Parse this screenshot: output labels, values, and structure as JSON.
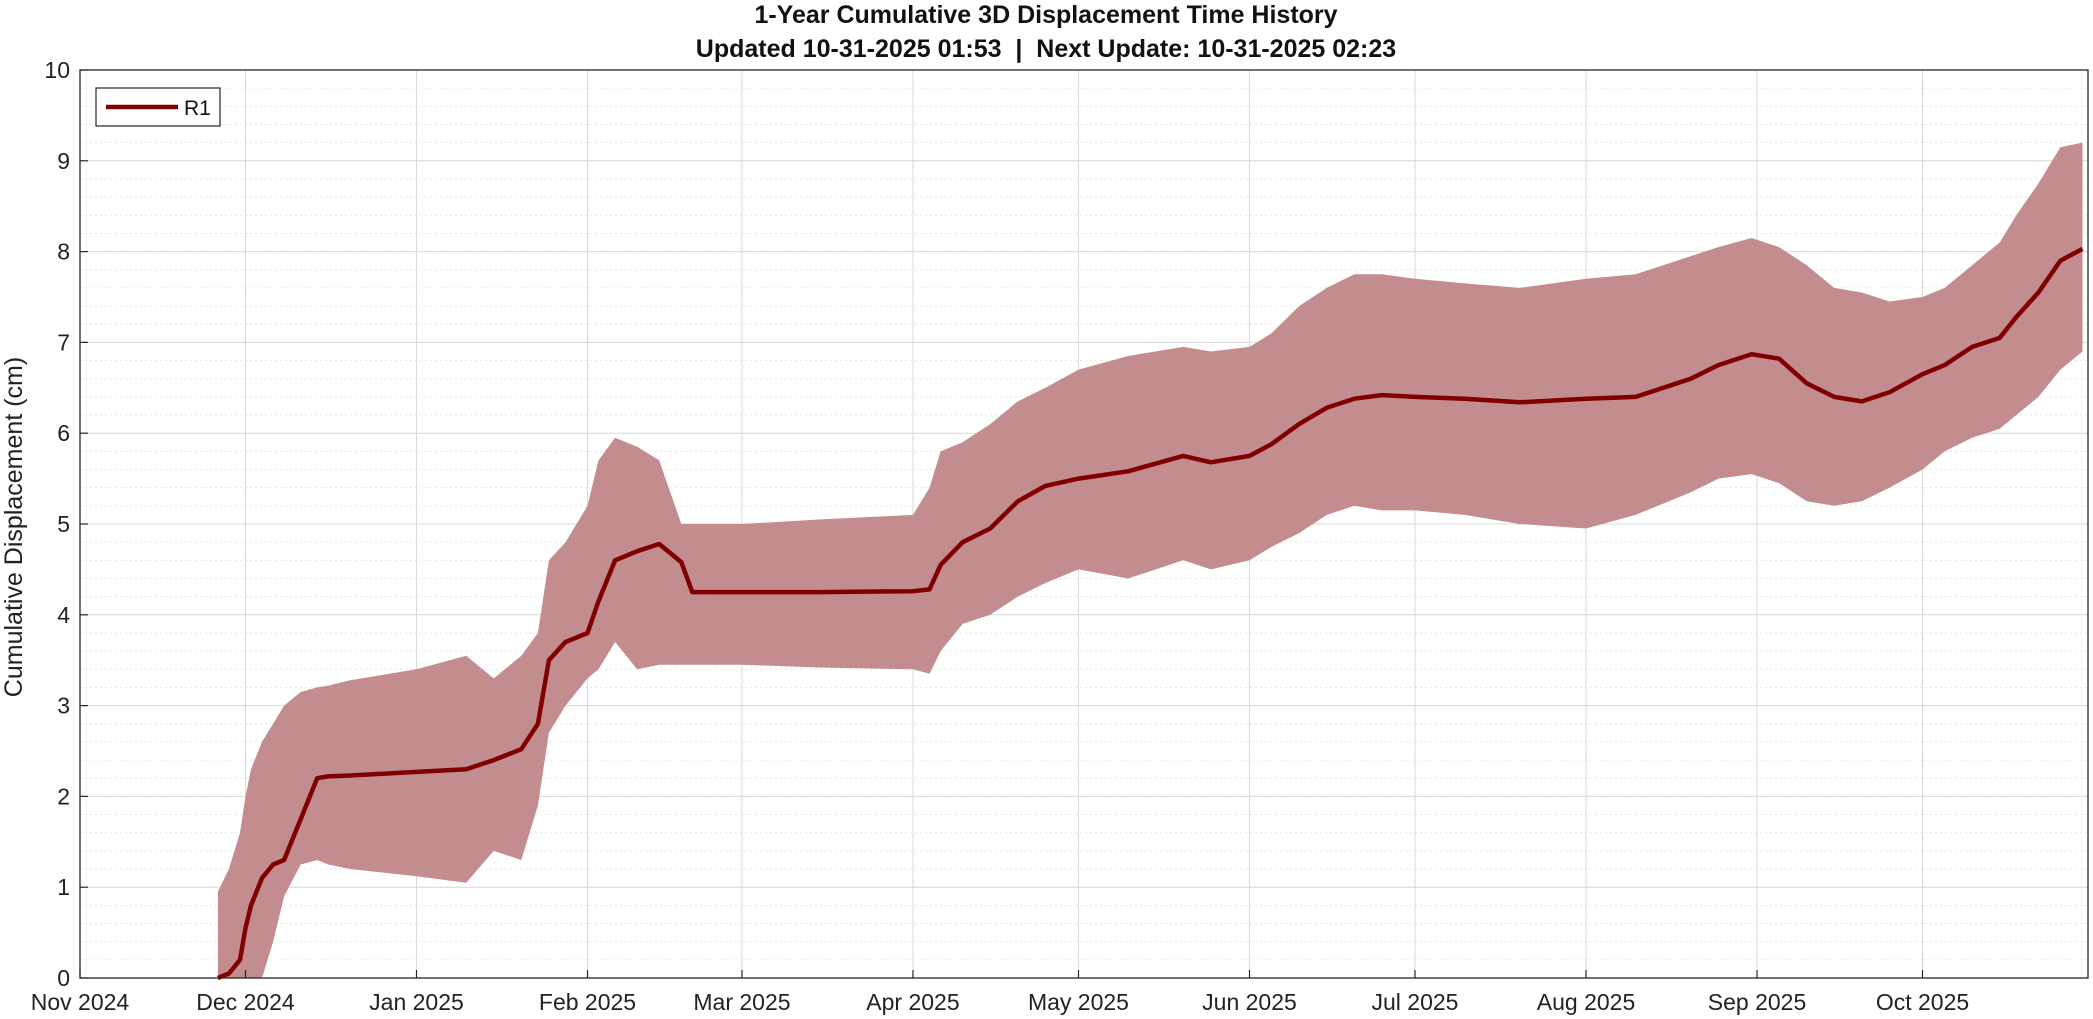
{
  "chart_data": {
    "type": "area",
    "title": "1-Year Cumulative 3D Displacement Time History",
    "subtitle": "Updated 10-31-2025 01:53  |  Next Update: 10-31-2025 02:23",
    "xlabel": "",
    "ylabel": "Cumulative Displacement (cm)",
    "xlim": [
      "2024-11-01",
      "2025-10-31"
    ],
    "ylim": [
      0,
      10
    ],
    "x_ticks": [
      "Nov 2024",
      "Dec 2024",
      "Jan 2025",
      "Feb 2025",
      "Mar 2025",
      "Apr 2025",
      "May 2025",
      "Jun 2025",
      "Jul 2025",
      "Aug 2025",
      "Sep 2025",
      "Oct 2025"
    ],
    "y_ticks": [
      "0",
      "1",
      "2",
      "3",
      "4",
      "5",
      "6",
      "7",
      "8",
      "9",
      "10"
    ],
    "grid": true,
    "minor_grid": true,
    "legend": {
      "position": "top-left",
      "entries": [
        "R1"
      ]
    },
    "colors": {
      "line": "#800000",
      "band": "#c38c8f",
      "grid_major": "#d9d9d9",
      "grid_minor": "#e6e6e6",
      "axis": "#262626"
    },
    "series": [
      {
        "name": "R1",
        "x": [
          "2024-11-26",
          "2024-11-28",
          "2024-11-30",
          "2024-12-01",
          "2024-12-02",
          "2024-12-04",
          "2024-12-06",
          "2024-12-08",
          "2024-12-11",
          "2024-12-14",
          "2024-12-16",
          "2024-12-20",
          "2025-01-01",
          "2025-01-10",
          "2025-01-15",
          "2025-01-20",
          "2025-01-23",
          "2025-01-25",
          "2025-01-28",
          "2025-02-01",
          "2025-02-03",
          "2025-02-06",
          "2025-02-10",
          "2025-02-14",
          "2025-02-18",
          "2025-02-20",
          "2025-03-01",
          "2025-03-15",
          "2025-04-01",
          "2025-04-04",
          "2025-04-06",
          "2025-04-10",
          "2025-04-15",
          "2025-04-20",
          "2025-04-25",
          "2025-05-01",
          "2025-05-10",
          "2025-05-20",
          "2025-05-25",
          "2025-06-01",
          "2025-06-05",
          "2025-06-10",
          "2025-06-15",
          "2025-06-20",
          "2025-06-25",
          "2025-07-01",
          "2025-07-10",
          "2025-07-20",
          "2025-08-01",
          "2025-08-10",
          "2025-08-20",
          "2025-08-25",
          "2025-08-31",
          "2025-09-05",
          "2025-09-10",
          "2025-09-15",
          "2025-09-20",
          "2025-09-25",
          "2025-10-01",
          "2025-10-05",
          "2025-10-10",
          "2025-10-15",
          "2025-10-18",
          "2025-10-22",
          "2025-10-26",
          "2025-10-30"
        ],
        "y": [
          0.0,
          0.05,
          0.2,
          0.55,
          0.8,
          1.1,
          1.25,
          1.3,
          1.75,
          2.2,
          2.22,
          2.23,
          2.27,
          2.3,
          2.4,
          2.52,
          2.8,
          3.5,
          3.7,
          3.8,
          4.15,
          4.6,
          4.7,
          4.78,
          4.58,
          4.25,
          4.25,
          4.25,
          4.26,
          4.28,
          4.55,
          4.8,
          4.95,
          5.25,
          5.42,
          5.5,
          5.58,
          5.75,
          5.68,
          5.75,
          5.88,
          6.1,
          6.28,
          6.38,
          6.42,
          6.4,
          6.38,
          6.34,
          6.38,
          6.4,
          6.6,
          6.75,
          6.87,
          6.82,
          6.55,
          6.4,
          6.35,
          6.45,
          6.65,
          6.75,
          6.95,
          7.05,
          7.28,
          7.55,
          7.9,
          8.03
        ],
        "lower": [
          0.0,
          0.0,
          0.0,
          0.0,
          0.0,
          0.0,
          0.4,
          0.9,
          1.25,
          1.3,
          1.25,
          1.2,
          1.12,
          1.05,
          1.4,
          1.3,
          1.9,
          2.7,
          3.0,
          3.3,
          3.4,
          3.7,
          3.4,
          3.45,
          3.45,
          3.45,
          3.45,
          3.42,
          3.4,
          3.35,
          3.6,
          3.9,
          4.0,
          4.2,
          4.35,
          4.5,
          4.4,
          4.6,
          4.5,
          4.6,
          4.75,
          4.9,
          5.1,
          5.2,
          5.15,
          5.15,
          5.1,
          5.0,
          4.95,
          5.1,
          5.35,
          5.5,
          5.55,
          5.45,
          5.25,
          5.2,
          5.25,
          5.4,
          5.6,
          5.8,
          5.95,
          6.05,
          6.2,
          6.4,
          6.7,
          6.9
        ],
        "upper": [
          0.95,
          1.2,
          1.6,
          2.0,
          2.3,
          2.6,
          2.8,
          3.0,
          3.15,
          3.2,
          3.22,
          3.28,
          3.4,
          3.55,
          3.3,
          3.55,
          3.8,
          4.6,
          4.8,
          5.2,
          5.7,
          5.95,
          5.85,
          5.7,
          5.0,
          5.0,
          5.0,
          5.05,
          5.1,
          5.4,
          5.8,
          5.9,
          6.1,
          6.35,
          6.5,
          6.7,
          6.85,
          6.95,
          6.9,
          6.95,
          7.1,
          7.4,
          7.6,
          7.75,
          7.75,
          7.7,
          7.65,
          7.6,
          7.7,
          7.75,
          7.95,
          8.05,
          8.15,
          8.05,
          7.85,
          7.6,
          7.55,
          7.45,
          7.5,
          7.6,
          7.85,
          8.1,
          8.4,
          8.75,
          9.15,
          9.2
        ]
      }
    ]
  }
}
